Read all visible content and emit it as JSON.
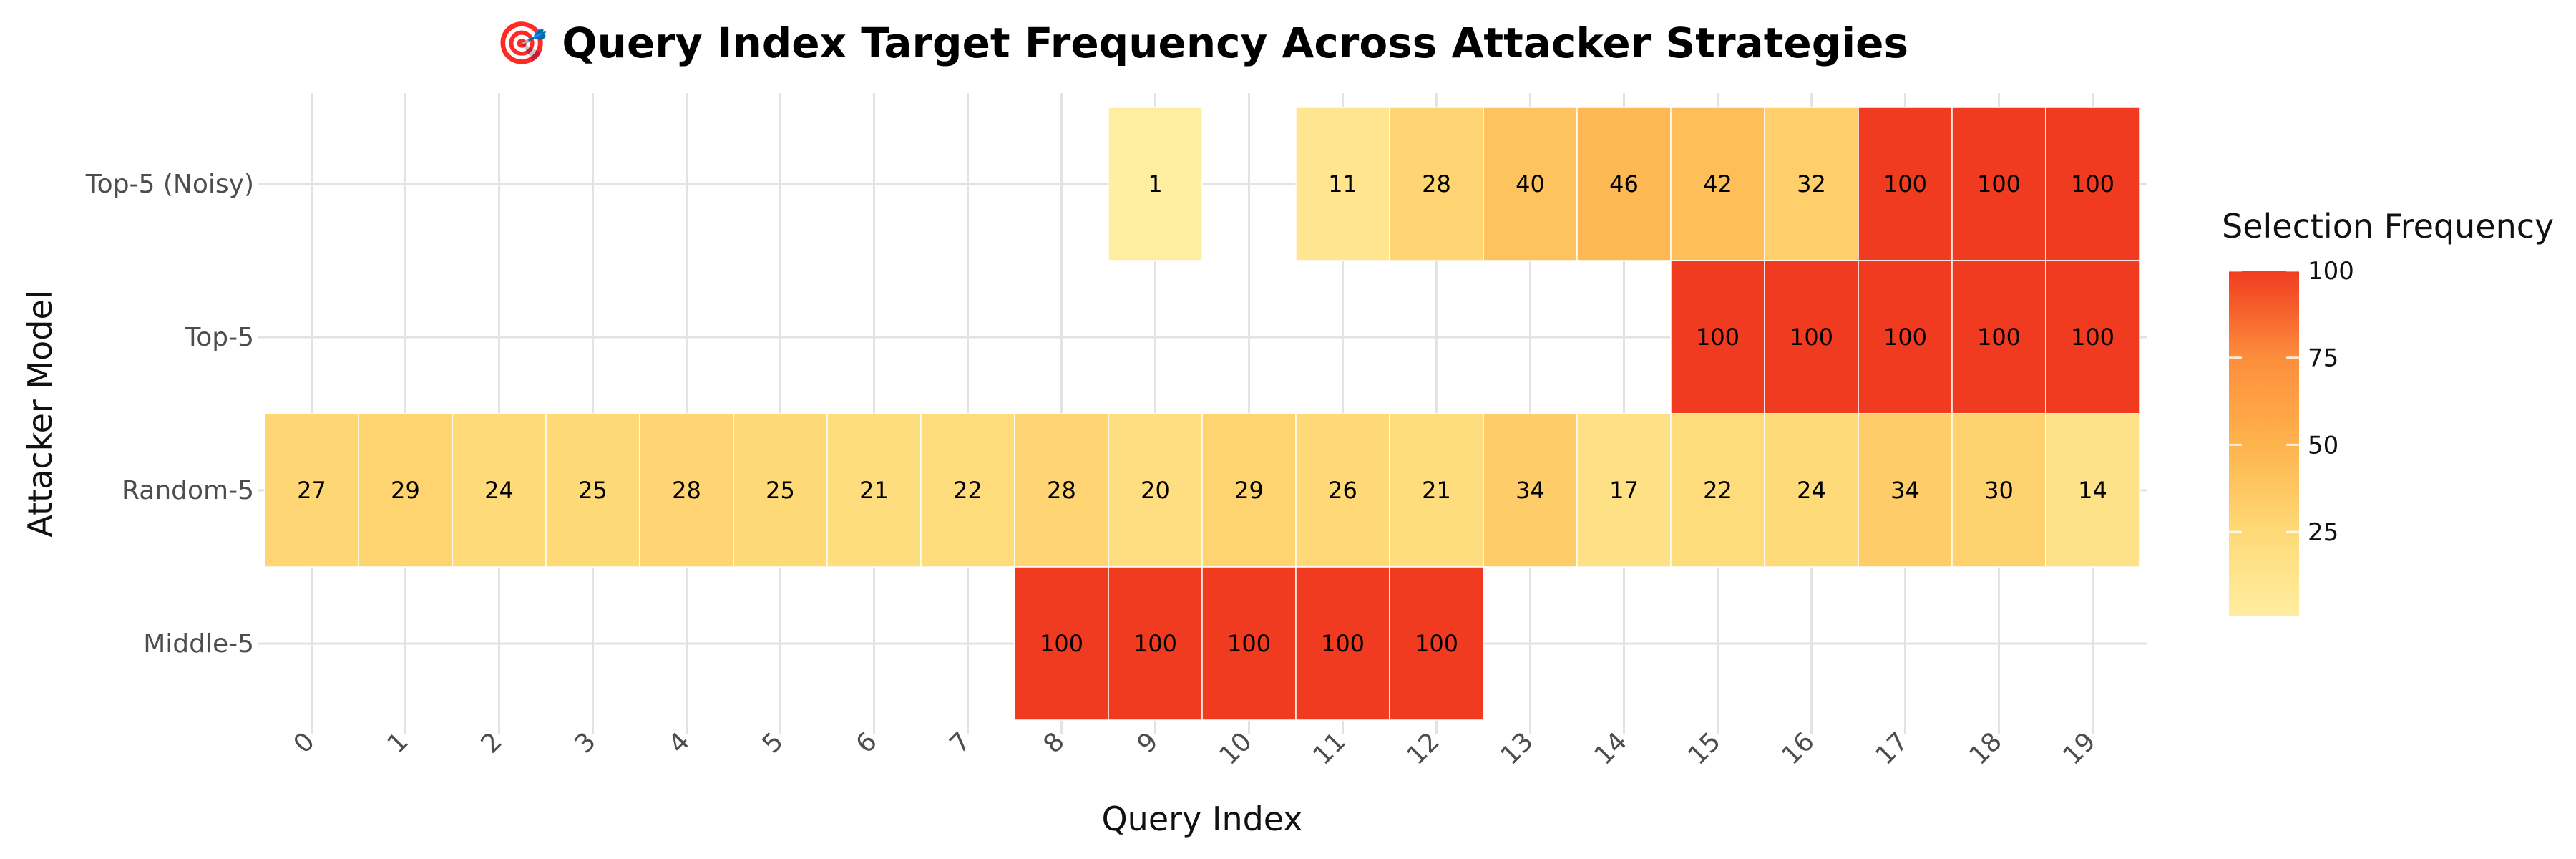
{
  "chart_data": {
    "type": "heatmap",
    "title": "🎯 Query Index Target Frequency Across Attacker Strategies",
    "xlabel": "Query Index",
    "ylabel": "Attacker Model",
    "x_categories": [
      "0",
      "1",
      "2",
      "3",
      "4",
      "5",
      "6",
      "7",
      "8",
      "9",
      "10",
      "11",
      "12",
      "13",
      "14",
      "15",
      "16",
      "17",
      "18",
      "19"
    ],
    "y_categories": [
      "Top-5 (Noisy)",
      "Top-5",
      "Random-5",
      "Middle-5"
    ],
    "cells": [
      {
        "model": "Top-5 (Noisy)",
        "index": 9,
        "value": 1
      },
      {
        "model": "Top-5 (Noisy)",
        "index": 11,
        "value": 11
      },
      {
        "model": "Top-5 (Noisy)",
        "index": 12,
        "value": 28
      },
      {
        "model": "Top-5 (Noisy)",
        "index": 13,
        "value": 40
      },
      {
        "model": "Top-5 (Noisy)",
        "index": 14,
        "value": 46
      },
      {
        "model": "Top-5 (Noisy)",
        "index": 15,
        "value": 42
      },
      {
        "model": "Top-5 (Noisy)",
        "index": 16,
        "value": 32
      },
      {
        "model": "Top-5 (Noisy)",
        "index": 17,
        "value": 100
      },
      {
        "model": "Top-5 (Noisy)",
        "index": 18,
        "value": 100
      },
      {
        "model": "Top-5 (Noisy)",
        "index": 19,
        "value": 100
      },
      {
        "model": "Top-5",
        "index": 15,
        "value": 100
      },
      {
        "model": "Top-5",
        "index": 16,
        "value": 100
      },
      {
        "model": "Top-5",
        "index": 17,
        "value": 100
      },
      {
        "model": "Top-5",
        "index": 18,
        "value": 100
      },
      {
        "model": "Top-5",
        "index": 19,
        "value": 100
      },
      {
        "model": "Random-5",
        "index": 0,
        "value": 27
      },
      {
        "model": "Random-5",
        "index": 1,
        "value": 29
      },
      {
        "model": "Random-5",
        "index": 2,
        "value": 24
      },
      {
        "model": "Random-5",
        "index": 3,
        "value": 25
      },
      {
        "model": "Random-5",
        "index": 4,
        "value": 28
      },
      {
        "model": "Random-5",
        "index": 5,
        "value": 25
      },
      {
        "model": "Random-5",
        "index": 6,
        "value": 21
      },
      {
        "model": "Random-5",
        "index": 7,
        "value": 22
      },
      {
        "model": "Random-5",
        "index": 8,
        "value": 28
      },
      {
        "model": "Random-5",
        "index": 9,
        "value": 20
      },
      {
        "model": "Random-5",
        "index": 10,
        "value": 29
      },
      {
        "model": "Random-5",
        "index": 11,
        "value": 26
      },
      {
        "model": "Random-5",
        "index": 12,
        "value": 21
      },
      {
        "model": "Random-5",
        "index": 13,
        "value": 34
      },
      {
        "model": "Random-5",
        "index": 14,
        "value": 17
      },
      {
        "model": "Random-5",
        "index": 15,
        "value": 22
      },
      {
        "model": "Random-5",
        "index": 16,
        "value": 24
      },
      {
        "model": "Random-5",
        "index": 17,
        "value": 34
      },
      {
        "model": "Random-5",
        "index": 18,
        "value": 30
      },
      {
        "model": "Random-5",
        "index": 19,
        "value": 14
      },
      {
        "model": "Middle-5",
        "index": 8,
        "value": 100
      },
      {
        "model": "Middle-5",
        "index": 9,
        "value": 100
      },
      {
        "model": "Middle-5",
        "index": 10,
        "value": 100
      },
      {
        "model": "Middle-5",
        "index": 11,
        "value": 100
      },
      {
        "model": "Middle-5",
        "index": 12,
        "value": 100
      }
    ],
    "value_range": [
      1,
      100
    ],
    "colorscale": [
      "#ffeda0",
      "#fed976",
      "#feb24c",
      "#fd8d3c",
      "#f03b20"
    ],
    "legend": {
      "title": "Selection Frequency",
      "ticks": [
        25,
        50,
        75,
        100
      ],
      "placement": "right"
    },
    "grid": true
  }
}
